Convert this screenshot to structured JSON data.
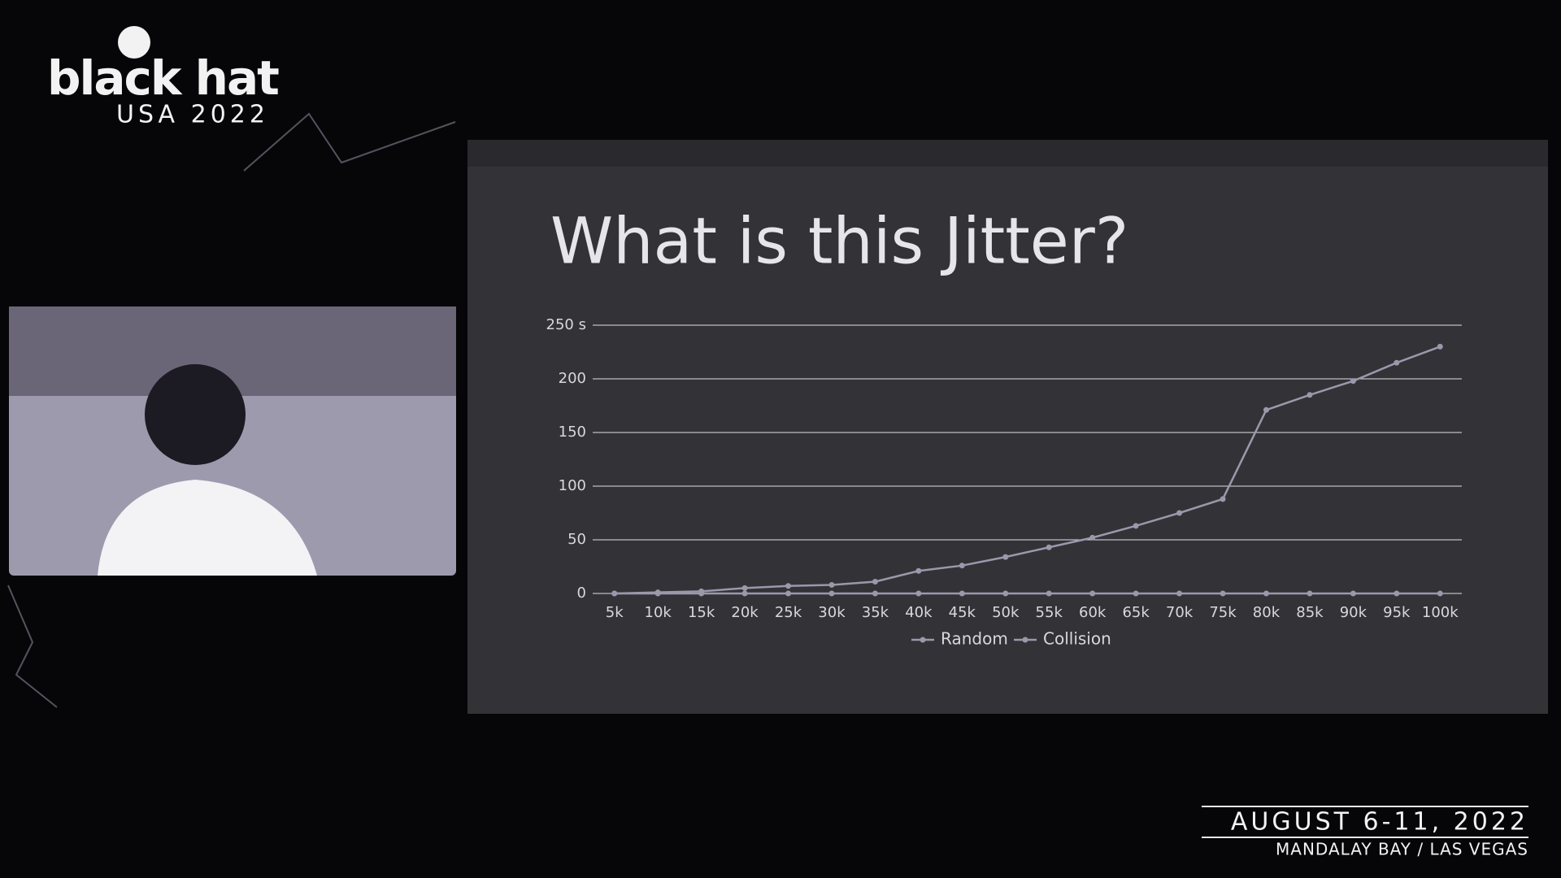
{
  "chart_data": {
    "type": "line",
    "title": "What is this Jitter?",
    "categories": [
      "5k",
      "10k",
      "15k",
      "20k",
      "25k",
      "30k",
      "35k",
      "40k",
      "45k",
      "50k",
      "55k",
      "60k",
      "65k",
      "70k",
      "75k",
      "80k",
      "85k",
      "90k",
      "95k",
      "100k"
    ],
    "series": [
      {
        "name": "Random",
        "color": "#9b98ab",
        "values": [
          0,
          0,
          0,
          0,
          0,
          0,
          0,
          0,
          0,
          0,
          0,
          0,
          0,
          0,
          0,
          0,
          0,
          0,
          0,
          0
        ]
      },
      {
        "name": "Collision",
        "color": "#9b98ab",
        "values": [
          0,
          1,
          2,
          5,
          7,
          8,
          11,
          21,
          26,
          34,
          43,
          52,
          63,
          75,
          88,
          171,
          185,
          198,
          215,
          230
        ]
      }
    ],
    "ylim": [
      0,
      250
    ],
    "yticks": [
      0,
      50,
      100,
      150,
      200,
      {
        "value": 250,
        "label": "250 s"
      }
    ],
    "grid": true,
    "legend": "bottom"
  },
  "branding": {
    "logo": "black hat",
    "edition": "USA 2022",
    "dates": "AUGUST 6-11, 2022",
    "venue": "MANDALAY BAY / LAS VEGAS"
  }
}
